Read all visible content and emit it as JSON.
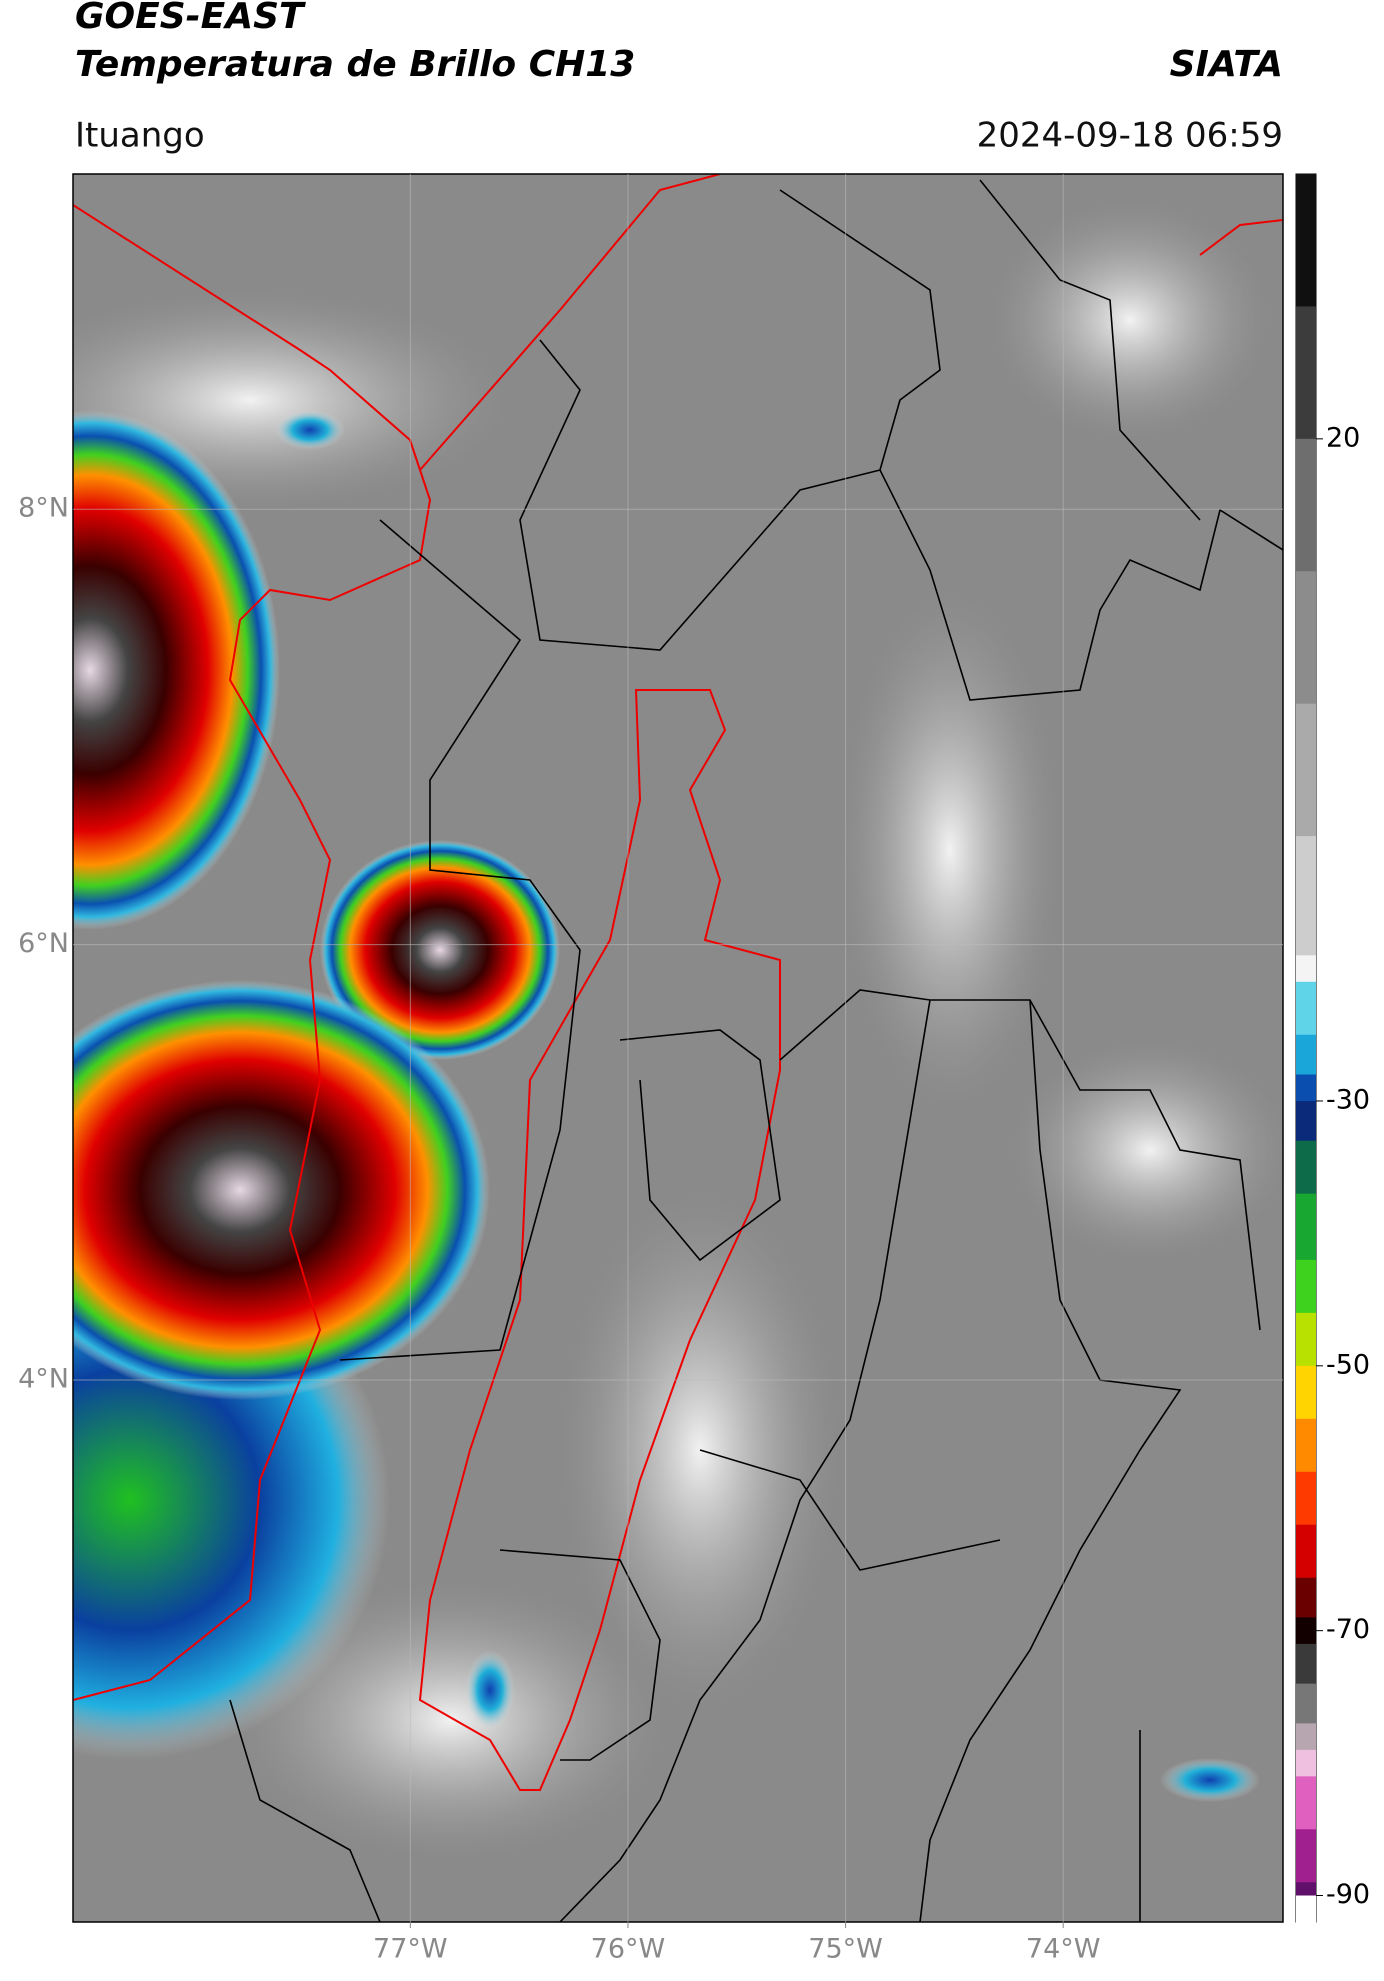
{
  "header": {
    "title": "GOES-EAST",
    "subtitle": "Temperatura de Brillo CH13",
    "brand": "SIATA",
    "location": "Ituango",
    "timestamp": "2024-09-18 06:59"
  },
  "map": {
    "type": "map",
    "xlim": [
      -78.55,
      -72.99
    ],
    "ylim": [
      1.51,
      9.54
    ],
    "xticks": [
      {
        "value": -77,
        "label": "77°W"
      },
      {
        "value": -76,
        "label": "76°W"
      },
      {
        "value": -75,
        "label": "75°W"
      },
      {
        "value": -74,
        "label": "74°W"
      }
    ],
    "yticks": [
      {
        "value": 8,
        "label": "8°N"
      },
      {
        "value": 6,
        "label": "6°N"
      },
      {
        "value": 4,
        "label": "4°N"
      }
    ],
    "grid": true
  },
  "colorbar": {
    "clim": [
      -92,
      40
    ],
    "ticks": [
      20,
      -30,
      -50,
      -70,
      -90
    ],
    "colorscale": [
      {
        "value": 40,
        "color": "#101010"
      },
      {
        "value": 30,
        "color": "#3c3c3c"
      },
      {
        "value": 20,
        "color": "#6e6e6e"
      },
      {
        "value": 10,
        "color": "#8c8c8c"
      },
      {
        "value": 0,
        "color": "#aaaaaa"
      },
      {
        "value": -10,
        "color": "#cdcdcd"
      },
      {
        "value": -19,
        "color": "#f4f4f4"
      },
      {
        "value": -21,
        "color": "#5fd3e8"
      },
      {
        "value": -25,
        "color": "#1aa6d8"
      },
      {
        "value": -28,
        "color": "#0a4fb0"
      },
      {
        "value": -30,
        "color": "#0b2a7a"
      },
      {
        "value": -33,
        "color": "#0d6b4a"
      },
      {
        "value": -37,
        "color": "#18a832"
      },
      {
        "value": -42,
        "color": "#3ed21e"
      },
      {
        "value": -46,
        "color": "#b8e000"
      },
      {
        "value": -50,
        "color": "#ffd400"
      },
      {
        "value": -54,
        "color": "#ff8a00"
      },
      {
        "value": -58,
        "color": "#ff3a00"
      },
      {
        "value": -62,
        "color": "#d40000"
      },
      {
        "value": -66,
        "color": "#6a0000"
      },
      {
        "value": -69,
        "color": "#120000"
      },
      {
        "value": -71,
        "color": "#3a3a3a"
      },
      {
        "value": -74,
        "color": "#777777"
      },
      {
        "value": -77,
        "color": "#b7a6b0"
      },
      {
        "value": -79,
        "color": "#f0c0e0"
      },
      {
        "value": -81,
        "color": "#e060c0"
      },
      {
        "value": -85,
        "color": "#a02090"
      },
      {
        "value": -89,
        "color": "#60106a"
      },
      {
        "value": -90,
        "color": "#ffffff"
      }
    ]
  }
}
